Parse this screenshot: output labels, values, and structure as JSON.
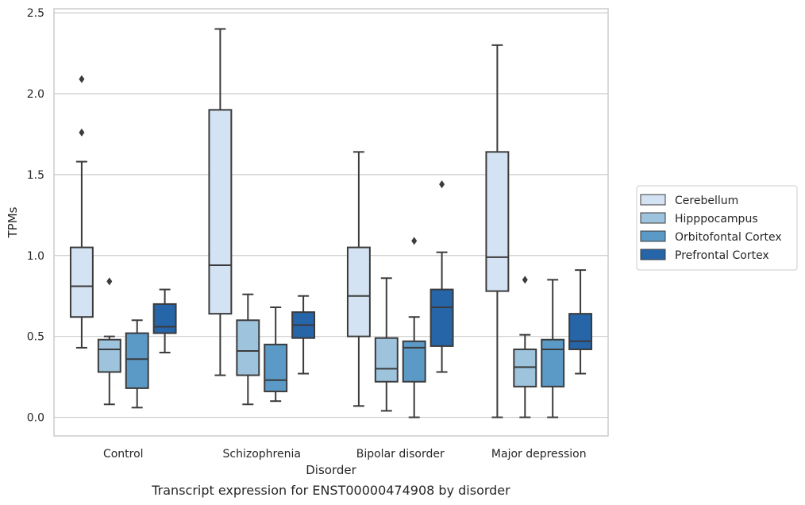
{
  "caption": "Transcript expression for ENST00000474908 by disorder",
  "chart_data": {
    "type": "box",
    "title": "",
    "xlabel": "Disorder",
    "ylabel": "TPMs",
    "ylim": [
      -0.115,
      2.525
    ],
    "yticks": [
      "0.0",
      "0.5",
      "1.0",
      "1.5",
      "2.0",
      "2.5"
    ],
    "grid": "horizontal",
    "legend_position": "right",
    "categories": [
      "Control",
      "Schizophrenia",
      "Bipolar disorder",
      "Major depression"
    ],
    "series": [
      {
        "name": "Cerebellum",
        "color": "#d4e3f3",
        "boxes": [
          {
            "whislo": 0.43,
            "q1": 0.62,
            "med": 0.81,
            "q3": 1.05,
            "whishi": 1.58,
            "fliers": [
              1.76,
              2.09
            ]
          },
          {
            "whislo": 0.26,
            "q1": 0.64,
            "med": 0.94,
            "q3": 1.9,
            "whishi": 2.4,
            "fliers": []
          },
          {
            "whislo": 0.07,
            "q1": 0.5,
            "med": 0.75,
            "q3": 1.05,
            "whishi": 1.64,
            "fliers": []
          },
          {
            "whislo": 0.0,
            "q1": 0.78,
            "med": 0.99,
            "q3": 1.64,
            "whishi": 2.3,
            "fliers": []
          }
        ]
      },
      {
        "name": "Hipppocampus",
        "color": "#9dc3dd",
        "boxes": [
          {
            "whislo": 0.08,
            "q1": 0.28,
            "med": 0.42,
            "q3": 0.48,
            "whishi": 0.5,
            "fliers": [
              0.84
            ]
          },
          {
            "whislo": 0.08,
            "q1": 0.26,
            "med": 0.41,
            "q3": 0.6,
            "whishi": 0.76,
            "fliers": []
          },
          {
            "whislo": 0.04,
            "q1": 0.22,
            "med": 0.3,
            "q3": 0.49,
            "whishi": 0.86,
            "fliers": []
          },
          {
            "whislo": 0.0,
            "q1": 0.19,
            "med": 0.31,
            "q3": 0.42,
            "whishi": 0.51,
            "fliers": [
              0.85
            ]
          }
        ]
      },
      {
        "name": "Orbitofontal Cortex",
        "color": "#5b9ac6",
        "boxes": [
          {
            "whislo": 0.06,
            "q1": 0.18,
            "med": 0.36,
            "q3": 0.52,
            "whishi": 0.6,
            "fliers": []
          },
          {
            "whislo": 0.1,
            "q1": 0.16,
            "med": 0.23,
            "q3": 0.45,
            "whishi": 0.68,
            "fliers": []
          },
          {
            "whislo": 0.0,
            "q1": 0.22,
            "med": 0.43,
            "q3": 0.47,
            "whishi": 0.62,
            "fliers": [
              1.09
            ]
          },
          {
            "whislo": 0.0,
            "q1": 0.19,
            "med": 0.42,
            "q3": 0.48,
            "whishi": 0.85,
            "fliers": []
          }
        ]
      },
      {
        "name": "Prefrontal Cortex",
        "color": "#2565a8",
        "boxes": [
          {
            "whislo": 0.4,
            "q1": 0.52,
            "med": 0.56,
            "q3": 0.7,
            "whishi": 0.79,
            "fliers": []
          },
          {
            "whislo": 0.27,
            "q1": 0.49,
            "med": 0.57,
            "q3": 0.65,
            "whishi": 0.75,
            "fliers": []
          },
          {
            "whislo": 0.28,
            "q1": 0.44,
            "med": 0.68,
            "q3": 0.79,
            "whishi": 1.02,
            "fliers": [
              1.44
            ]
          },
          {
            "whislo": 0.27,
            "q1": 0.42,
            "med": 0.47,
            "q3": 0.64,
            "whishi": 0.91,
            "fliers": []
          }
        ]
      }
    ]
  }
}
